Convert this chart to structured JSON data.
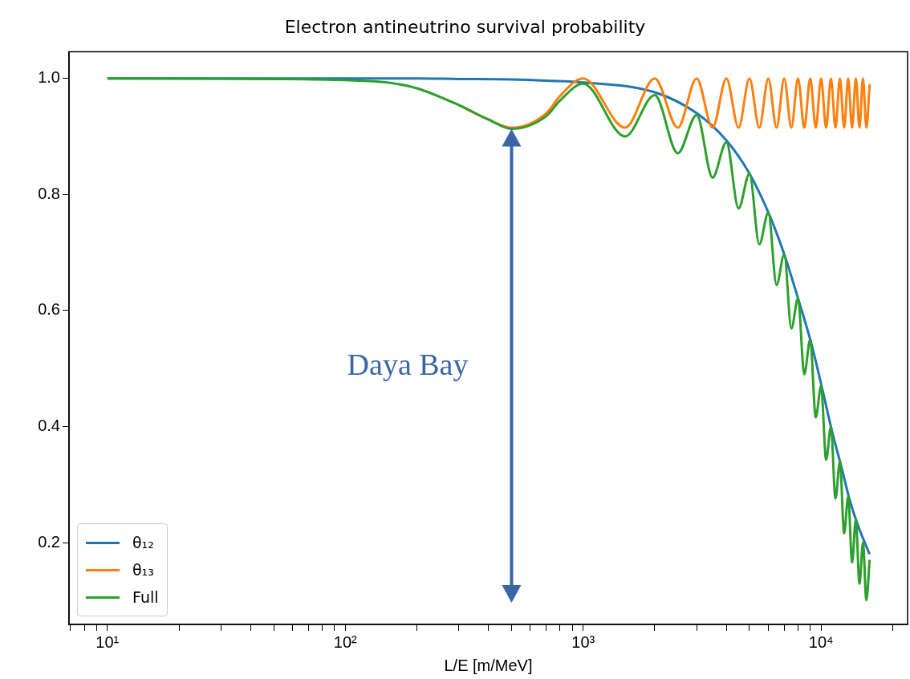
{
  "chart_data": {
    "type": "line",
    "title": "Electron antineutrino survival probability",
    "xlabel": "L/E [m/MeV]",
    "log": "x",
    "xlim": [
      6.9,
      23100
    ],
    "ylim": [
      0.059,
      1.046
    ],
    "xticks": [
      {
        "value": 7,
        "label": null
      },
      {
        "value": 8,
        "label": null
      },
      {
        "value": 9,
        "label": null
      },
      {
        "value": 10,
        "label": "10¹"
      },
      {
        "value": 20,
        "label": null
      },
      {
        "value": 30,
        "label": null
      },
      {
        "value": 40,
        "label": null
      },
      {
        "value": 50,
        "label": null
      },
      {
        "value": 60,
        "label": null
      },
      {
        "value": 70,
        "label": null
      },
      {
        "value": 80,
        "label": null
      },
      {
        "value": 90,
        "label": null
      },
      {
        "value": 100,
        "label": "10²"
      },
      {
        "value": 200,
        "label": null
      },
      {
        "value": 300,
        "label": null
      },
      {
        "value": 400,
        "label": null
      },
      {
        "value": 500,
        "label": null
      },
      {
        "value": 600,
        "label": null
      },
      {
        "value": 700,
        "label": null
      },
      {
        "value": 800,
        "label": null
      },
      {
        "value": 900,
        "label": null
      },
      {
        "value": 1000,
        "label": "10³"
      },
      {
        "value": 2000,
        "label": null
      },
      {
        "value": 3000,
        "label": null
      },
      {
        "value": 4000,
        "label": null
      },
      {
        "value": 5000,
        "label": null
      },
      {
        "value": 6000,
        "label": null
      },
      {
        "value": 7000,
        "label": null
      },
      {
        "value": 8000,
        "label": null
      },
      {
        "value": 9000,
        "label": null
      },
      {
        "value": 10000,
        "label": "10⁴"
      },
      {
        "value": 20000,
        "label": null
      }
    ],
    "yticks": [
      0.2,
      0.4,
      0.6,
      0.8,
      {
        "value": 1,
        "label": "1.0"
      }
    ],
    "legend": "bottom left",
    "grid": false,
    "marker": "none",
    "line_style": "solid",
    "annotations": [
      "Daya Bay"
    ],
    "series": [
      {
        "name": "θ₁₂",
        "color": "#1f77b4",
        "x": [
          10,
          100,
          200,
          300,
          500,
          700,
          1000,
          2000,
          3000,
          4000,
          5000,
          6000,
          7000,
          8000,
          9100,
          10100,
          11100,
          12200,
          13200,
          14300,
          16000
        ],
        "values": [
          1,
          1,
          1,
          0.999,
          0.998,
          0.996,
          0.993,
          0.976,
          0.94,
          0.893,
          0.836,
          0.769,
          0.697,
          0.621,
          0.543,
          0.466,
          0.393,
          0.329,
          0.273,
          0.229,
          0.18
        ]
      },
      {
        "name": "θ₁₃",
        "color": "#ff7f0e",
        "x": [
          300,
          400,
          500,
          700,
          800,
          1000,
          1500,
          2000,
          2500,
          3000,
          3500,
          4000,
          4500,
          5000,
          5500,
          6000,
          6500,
          7000,
          7500,
          8000,
          8500,
          9000,
          9500,
          10000,
          10500,
          11000,
          11500,
          12000,
          12500,
          13000,
          13500,
          14000,
          14500,
          15000,
          15500,
          16000
        ],
        "values": [
          0.954,
          0.929,
          0.915,
          0.94,
          0.97,
          1,
          0.915,
          1,
          0.915,
          1,
          0.915,
          1,
          0.915,
          1,
          0.915,
          1,
          0.915,
          1,
          0.915,
          1,
          0.915,
          1,
          0.915,
          1,
          0.915,
          1,
          0.915,
          1,
          0.915,
          1,
          0.915,
          1,
          0.915,
          1,
          0.915,
          0.99
        ]
      },
      {
        "name": "Full",
        "color": "#2ca02c",
        "x": [
          10,
          50,
          100,
          150,
          200,
          300,
          400,
          500,
          700,
          800,
          1000,
          1500,
          2000,
          2500,
          3000,
          3500,
          4000,
          4500,
          5000,
          5500,
          6000,
          6500,
          7000,
          7500,
          8000,
          8500,
          9000,
          9500,
          10000,
          10500,
          11000,
          11500,
          12000,
          12500,
          13000,
          13500,
          14000,
          14500,
          15000,
          15500,
          16000
        ],
        "values": [
          1,
          0.999,
          0.997,
          0.993,
          0.983,
          0.954,
          0.929,
          0.913,
          0.935,
          0.962,
          0.991,
          0.9,
          0.971,
          0.871,
          0.937,
          0.829,
          0.89,
          0.776,
          0.836,
          0.714,
          0.769,
          0.644,
          0.697,
          0.569,
          0.621,
          0.49,
          0.55,
          0.416,
          0.47,
          0.343,
          0.4,
          0.276,
          0.34,
          0.216,
          0.28,
          0.166,
          0.24,
          0.129,
          0.2,
          0.101,
          0.17
        ]
      }
    ]
  }
}
